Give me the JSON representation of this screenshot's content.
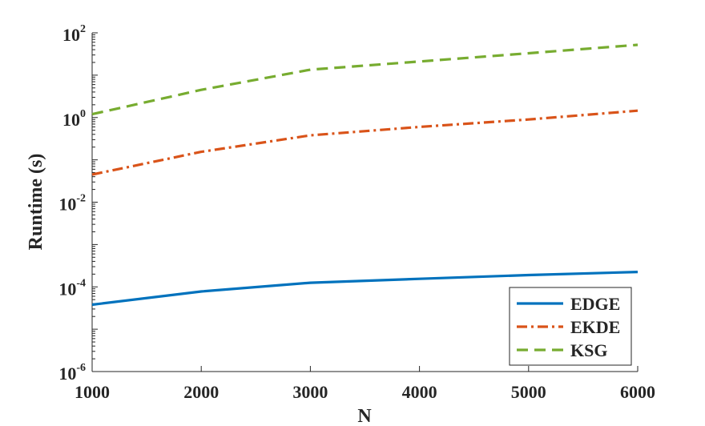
{
  "chart_data": {
    "type": "line",
    "xlabel": "N",
    "ylabel": "Runtime (s)",
    "x": [
      1000,
      2000,
      3000,
      4000,
      5000,
      6000
    ],
    "xlim": [
      1000,
      6000
    ],
    "ylim": [
      1e-06,
      100
    ],
    "yscale": "log",
    "xticks": [
      1000,
      2000,
      3000,
      4000,
      5000,
      6000
    ],
    "xtick_labels": [
      "1000",
      "2000",
      "3000",
      "4000",
      "5000",
      "6000"
    ],
    "yticks": [
      {
        "base": "10",
        "exp": "-6",
        "value": 1e-06
      },
      {
        "base": "10",
        "exp": "-4",
        "value": 0.0001
      },
      {
        "base": "10",
        "exp": "-2",
        "value": 0.01
      },
      {
        "base": "10",
        "exp": "0",
        "value": 1
      },
      {
        "base": "10",
        "exp": "2",
        "value": 100
      }
    ],
    "grid": false,
    "legend_position": "bottom-right",
    "series": [
      {
        "name": "EDGE",
        "color": "#0072BD",
        "style": "solid",
        "values": [
          3.8e-05,
          7.8e-05,
          0.000125,
          0.000155,
          0.00019,
          0.000225
        ]
      },
      {
        "name": "EKDE",
        "color": "#D95319",
        "style": "dash-dot",
        "values": [
          0.045,
          0.155,
          0.38,
          0.6,
          0.9,
          1.45
        ]
      },
      {
        "name": "KSG",
        "color": "#77AC30",
        "style": "dashed",
        "values": [
          1.2,
          4.5,
          13.5,
          21,
          33,
          52
        ]
      }
    ]
  }
}
